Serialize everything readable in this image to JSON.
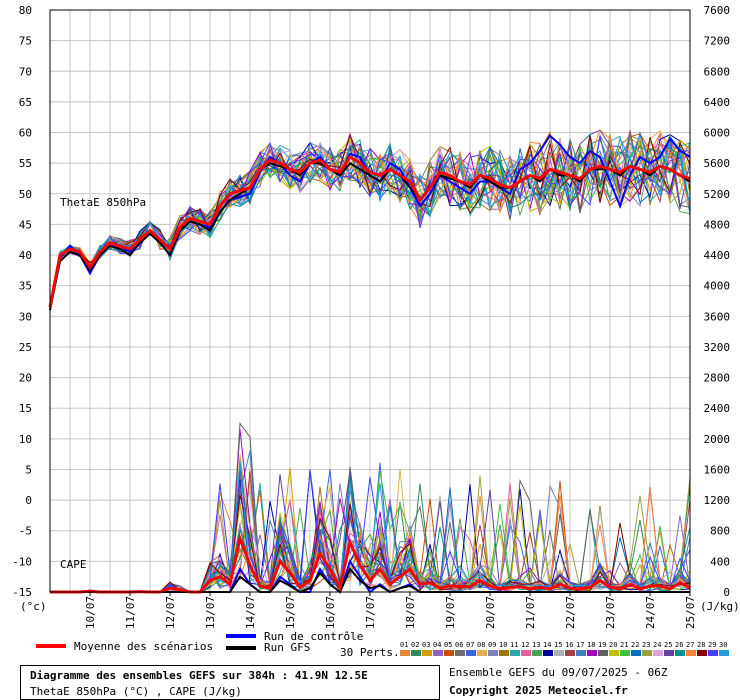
{
  "chart_data": {
    "type": "line",
    "left_axis": {
      "label": "(°c)",
      "min": -15,
      "max": 80,
      "ticks": [
        80,
        75,
        70,
        65,
        60,
        55,
        50,
        45,
        40,
        35,
        30,
        25,
        20,
        15,
        10,
        5,
        0,
        -5,
        -10,
        -15
      ]
    },
    "right_axis": {
      "label": "(J/kg)",
      "min": 0,
      "max": 7600,
      "ticks": [
        7600,
        7200,
        6800,
        6400,
        6000,
        5600,
        5200,
        4800,
        4400,
        4000,
        3600,
        3200,
        2800,
        2400,
        2000,
        1600,
        1200,
        800,
        400,
        0
      ]
    },
    "x_axis": {
      "range_days": [
        9.0,
        25.0
      ],
      "date_labels": [
        "10/07",
        "11/07",
        "12/07",
        "13/07",
        "14/07",
        "15/07",
        "16/07",
        "17/07",
        "18/07",
        "19/07",
        "20/07",
        "21/07",
        "22/07",
        "23/07",
        "24/07",
        "25/07"
      ]
    },
    "theta_label": "ThetaE 850hPa",
    "cape_label": "CAPE",
    "x_days": [
      9.0,
      9.25,
      9.5,
      9.75,
      10.0,
      10.25,
      10.5,
      10.75,
      11.0,
      11.25,
      11.5,
      11.75,
      12.0,
      12.25,
      12.5,
      12.75,
      13.0,
      13.25,
      13.5,
      13.75,
      14.0,
      14.25,
      14.5,
      14.75,
      15.0,
      15.25,
      15.5,
      15.75,
      16.0,
      16.25,
      16.5,
      16.75,
      17.0,
      17.25,
      17.5,
      17.75,
      18.0,
      18.25,
      18.5,
      18.75,
      19.0,
      19.25,
      19.5,
      19.75,
      20.0,
      20.25,
      20.5,
      20.75,
      21.0,
      21.25,
      21.5,
      21.75,
      22.0,
      22.25,
      22.5,
      22.75,
      23.0,
      23.25,
      23.5,
      23.75,
      24.0,
      24.25,
      24.5,
      24.75,
      25.0
    ],
    "series": [
      {
        "name": "Moyenne des scénarios",
        "color": "#ff0000",
        "theta": [
          31.5,
          40,
          41,
          40.5,
          38,
          40.5,
          42,
          41.5,
          41,
          42.5,
          44,
          42.5,
          41,
          44.5,
          46,
          45.5,
          45,
          48,
          50,
          50.5,
          51,
          54,
          55.5,
          55,
          54,
          53.5,
          55,
          55.5,
          54,
          53.5,
          56,
          55,
          53.5,
          53,
          54,
          53,
          52,
          49,
          51,
          53.5,
          53,
          52,
          51.5,
          53,
          52.5,
          51.5,
          51,
          52,
          53,
          52.5,
          54,
          53.5,
          53,
          52.5,
          54,
          54.5,
          54,
          53.5,
          54.5,
          54,
          53.5,
          54.5,
          54,
          53,
          52.5
        ],
        "cape": [
          0,
          0,
          0,
          0,
          10,
          0,
          0,
          0,
          0,
          5,
          0,
          0,
          50,
          30,
          0,
          0,
          150,
          200,
          100,
          700,
          350,
          80,
          50,
          400,
          250,
          60,
          150,
          500,
          300,
          60,
          650,
          350,
          150,
          300,
          100,
          200,
          300,
          100,
          120,
          50,
          80,
          70,
          70,
          150,
          80,
          40,
          60,
          70,
          40,
          60,
          40,
          100,
          50,
          40,
          60,
          150,
          60,
          40,
          100,
          40,
          80,
          80,
          40,
          120,
          60
        ]
      },
      {
        "name": "Run de contrôle",
        "color": "#0000ff",
        "theta": [
          31,
          39.5,
          41.5,
          40,
          37,
          40,
          42,
          41.5,
          40.5,
          42,
          43.5,
          42,
          40,
          44,
          45.5,
          45,
          44.5,
          47,
          49,
          49.5,
          50,
          53.5,
          56,
          55,
          53,
          52,
          55,
          56,
          54,
          53,
          56.5,
          56,
          53,
          52,
          55,
          54,
          51,
          48,
          50,
          53,
          52,
          51,
          50,
          52,
          52,
          51,
          50,
          54,
          55,
          57,
          59.5,
          58,
          56,
          55,
          57,
          56,
          52,
          48,
          53,
          56,
          55,
          56,
          59,
          57,
          56
        ],
        "cape": [
          0,
          0,
          0,
          0,
          0,
          0,
          0,
          0,
          0,
          0,
          0,
          0,
          0,
          0,
          0,
          0,
          0,
          0,
          0,
          300,
          100,
          0,
          0,
          200,
          100,
          0,
          0,
          300,
          100,
          0,
          400,
          200,
          0,
          100,
          0,
          50,
          100,
          0,
          0,
          0,
          0,
          0,
          0,
          0,
          0,
          0,
          0,
          0,
          0,
          0,
          0,
          0,
          0,
          0,
          0,
          0,
          0,
          0,
          0,
          0,
          0,
          0,
          0,
          0,
          0
        ]
      },
      {
        "name": "Run GFS",
        "color": "#000000",
        "theta": [
          31,
          39,
          40.5,
          40,
          37.5,
          40,
          41.5,
          41,
          40,
          42,
          43.5,
          42,
          40,
          44,
          45.5,
          45,
          44,
          47,
          49,
          50,
          51,
          54,
          55,
          54.5,
          54,
          53,
          55,
          55,
          54,
          53,
          55,
          54,
          53,
          52,
          54,
          53,
          51,
          49,
          51,
          53,
          52.5,
          52,
          51,
          53,
          52,
          51,
          51,
          52,
          53,
          52,
          54,
          53,
          53,
          52,
          54,
          54,
          54,
          53,
          54.5,
          54,
          53,
          54.5,
          54,
          53,
          52
        ],
        "cape": [
          0,
          0,
          0,
          0,
          0,
          0,
          0,
          0,
          0,
          0,
          0,
          0,
          0,
          0,
          0,
          0,
          0,
          0,
          0,
          200,
          100,
          0,
          0,
          150,
          80,
          0,
          50,
          250,
          100,
          0,
          300,
          150,
          50,
          80,
          0,
          50,
          80,
          0,
          0,
          0,
          0,
          0,
          0,
          0,
          0,
          0,
          0,
          0,
          0,
          0,
          0,
          0,
          0,
          0,
          0,
          0,
          0,
          0,
          0,
          0,
          0,
          0,
          0,
          0,
          0
        ]
      }
    ],
    "legend_mean": "Moyenne des scénarios",
    "legend_control": "Run de contrôle",
    "legend_gfs": "Run GFS",
    "perts_label": "30 Perts.",
    "pert_numbers": [
      "01",
      "02",
      "03",
      "04",
      "05",
      "06",
      "07",
      "08",
      "09",
      "10",
      "11",
      "12",
      "13",
      "14",
      "15",
      "16",
      "17",
      "18",
      "19",
      "20",
      "21",
      "22",
      "23",
      "24",
      "25",
      "26",
      "27",
      "28",
      "29",
      "30"
    ],
    "pert_colors": [
      "#e6883c",
      "#2e8b57",
      "#d2a000",
      "#8f60c0",
      "#c85000",
      "#707070",
      "#3c64dc",
      "#e0b050",
      "#8080c0",
      "#9a7a10",
      "#2aa8a8",
      "#e060a0",
      "#50a050",
      "#0000a0",
      "#b0b0b0",
      "#a04040",
      "#4080c0",
      "#a000c0",
      "#606060",
      "#c0c000",
      "#40c040",
      "#0070c0",
      "#a0a040",
      "#e0a0e0",
      "#6040a0",
      "#009090",
      "#ff8040",
      "#800000",
      "#4040ff",
      "#20a0e0"
    ]
  },
  "info": {
    "title": "Diagramme des ensembles GEFS sur 384h : 41.9N 12.5E",
    "subtitle": "ThetaE 850hPa (°C) , CAPE (J/kg)"
  },
  "credits": {
    "line1": "Ensemble GEFS du 09/07/2025 - 06Z",
    "line2": "Copyright 2025 Meteociel.fr"
  }
}
